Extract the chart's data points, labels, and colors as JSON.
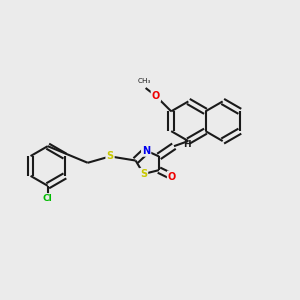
{
  "bg_color": "#ebebeb",
  "line_color": "#1a1a1a",
  "atom_colors": {
    "S": "#c8c800",
    "N": "#0000ee",
    "O": "#ee0000",
    "Cl": "#00bb00",
    "C": "#1a1a1a",
    "H": "#1a1a1a"
  },
  "bond_lw": 1.5,
  "figsize": [
    3.0,
    3.0
  ],
  "dpi": 100
}
